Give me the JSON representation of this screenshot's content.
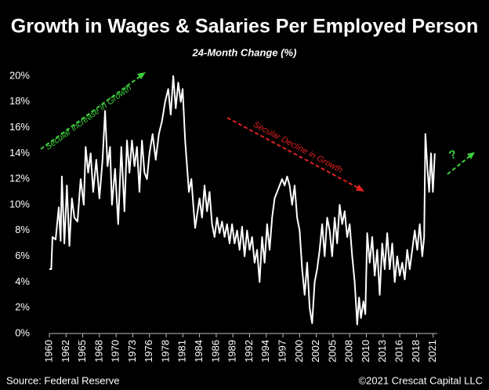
{
  "chart_data": {
    "type": "line",
    "title": "Growth in Wages & Salaries Per Employed Person",
    "subtitle": "24-Month Change (%)",
    "annotations": [
      "Secular Increase in Growth",
      "Secular Decline in Growth",
      "?"
    ],
    "source": "Source: Federal Reserve",
    "credit": "©2021 Crescat Capital LLC",
    "color": "#ffffff",
    "x": [
      1960.0,
      1960.3,
      1960.5,
      1961.0,
      1961.5,
      1961.8,
      1962.0,
      1962.4,
      1962.8,
      1963.2,
      1963.6,
      1964.0,
      1964.5,
      1965.0,
      1965.5,
      1965.8,
      1966.2,
      1966.6,
      1967.0,
      1967.5,
      1968.0,
      1968.5,
      1968.9,
      1969.3,
      1969.7,
      1970.0,
      1970.5,
      1971.0,
      1971.5,
      1972.0,
      1972.4,
      1972.8,
      1973.2,
      1973.6,
      1974.0,
      1974.4,
      1974.8,
      1975.2,
      1975.6,
      1976.0,
      1976.5,
      1977.0,
      1977.5,
      1978.0,
      1978.5,
      1979.0,
      1979.4,
      1979.8,
      1980.2,
      1980.6,
      1981.0,
      1981.3,
      1981.7,
      1982.0,
      1982.3,
      1982.7,
      1983.0,
      1983.3,
      1983.7,
      1984.0,
      1984.4,
      1984.8,
      1985.2,
      1985.6,
      1986.0,
      1986.4,
      1986.8,
      1987.2,
      1987.6,
      1988.0,
      1988.4,
      1988.8,
      1989.2,
      1989.6,
      1990.0,
      1990.4,
      1990.8,
      1991.2,
      1991.6,
      1992.0,
      1992.4,
      1992.8,
      1993.2,
      1993.6,
      1994.0,
      1994.4,
      1994.8,
      1995.2,
      1995.6,
      1996.0,
      1996.4,
      1996.8,
      1997.2,
      1997.6,
      1998.0,
      1998.4,
      1998.8,
      1999.2,
      1999.6,
      2000.0,
      2000.4,
      2000.8,
      2001.2,
      2001.6,
      2002.0,
      2002.4,
      2002.8,
      2003.2,
      2003.6,
      2004.0,
      2004.4,
      2004.8,
      2005.2,
      2005.6,
      2006.0,
      2006.4,
      2006.8,
      2007.2,
      2007.6,
      2008.0,
      2008.4,
      2008.8,
      2009.2,
      2009.5,
      2009.8,
      2010.2,
      2010.5,
      2010.8,
      2011.2,
      2011.6,
      2012.0,
      2012.4,
      2012.8,
      2013.2,
      2013.6,
      2014.0,
      2014.4,
      2014.8,
      2015.2,
      2015.6,
      2016.0,
      2016.4,
      2016.8,
      2017.2,
      2017.6,
      2018.0,
      2018.4,
      2018.8,
      2019.2,
      2019.6,
      2019.9,
      2020.1,
      2020.4,
      2020.7,
      2021.0,
      2021.3,
      2021.6
    ],
    "values": [
      5.0,
      5.0,
      7.5,
      7.3,
      9.8,
      7.2,
      12.2,
      7.0,
      11.5,
      6.8,
      10.5,
      9.0,
      8.7,
      12.0,
      10.0,
      14.5,
      12.5,
      14.0,
      11.0,
      13.5,
      10.5,
      13.5,
      17.3,
      13.0,
      14.5,
      10.0,
      12.8,
      8.5,
      14.5,
      9.5,
      15.0,
      12.5,
      15.0,
      13.0,
      14.5,
      11.0,
      15.0,
      12.5,
      12.0,
      14.0,
      15.5,
      13.5,
      15.5,
      16.5,
      18.0,
      19.0,
      17.0,
      20.0,
      17.5,
      19.5,
      18.0,
      19.0,
      15.0,
      13.0,
      11.0,
      12.0,
      10.0,
      8.2,
      9.5,
      10.5,
      9.0,
      11.5,
      9.5,
      11.0,
      8.5,
      7.5,
      9.0,
      7.8,
      8.7,
      7.5,
      8.5,
      7.0,
      8.5,
      7.0,
      8.0,
      6.5,
      8.3,
      6.0,
      8.0,
      6.5,
      7.5,
      5.5,
      6.5,
      4.0,
      7.5,
      5.5,
      8.5,
      6.5,
      9.0,
      10.5,
      11.0,
      11.5,
      12.0,
      11.5,
      12.2,
      11.5,
      10.0,
      11.5,
      9.0,
      8.0,
      5.0,
      3.0,
      5.5,
      2.0,
      0.8,
      4.0,
      5.0,
      6.5,
      8.5,
      6.0,
      9.0,
      8.0,
      6.0,
      9.0,
      7.0,
      10.0,
      8.5,
      9.5,
      7.5,
      8.5,
      6.0,
      4.0,
      0.7,
      2.8,
      1.2,
      2.5,
      1.5,
      7.8,
      5.5,
      7.5,
      4.5,
      6.5,
      3.0,
      7.0,
      5.0,
      7.8,
      5.0,
      7.0,
      4.0,
      6.0,
      4.5,
      5.5,
      4.2,
      6.5,
      5.0,
      6.5,
      8.0,
      6.5,
      8.5,
      6.0,
      7.5,
      15.5,
      13.0,
      11.0,
      14.0,
      11.0,
      14.0
    ],
    "xlim": [
      1960,
      2022
    ],
    "xticks": [
      1960,
      {
        "value": 1962.67,
        "label": "1962"
      },
      {
        "value": 1965.33,
        "label": "1965"
      },
      1968,
      {
        "value": 1970.67,
        "label": "1970"
      },
      {
        "value": 1973.33,
        "label": "1973"
      },
      1976,
      {
        "value": 1978.67,
        "label": "1978"
      },
      {
        "value": 1981.33,
        "label": "1981"
      },
      1984,
      {
        "value": 1986.67,
        "label": "1986"
      },
      {
        "value": 1989.33,
        "label": "1989"
      },
      1992,
      {
        "value": 1994.67,
        "label": "1994"
      },
      {
        "value": 1997.33,
        "label": "1997"
      },
      2000,
      {
        "value": 2002.67,
        "label": "2002"
      },
      {
        "value": 2005.33,
        "label": "2005"
      },
      2008,
      {
        "value": 2010.67,
        "label": "2010"
      },
      {
        "value": 2013.33,
        "label": "2013"
      },
      2016,
      {
        "value": 2018.67,
        "label": "2018"
      },
      {
        "value": 2021.33,
        "label": "2021"
      }
    ],
    "ylim": [
      0,
      20
    ],
    "yticks": [
      {
        "value": 0,
        "label": "0%"
      },
      {
        "value": 2,
        "label": "2%"
      },
      {
        "value": 4,
        "label": "4%"
      },
      {
        "value": 6,
        "label": "6%"
      },
      {
        "value": 8,
        "label": "8%"
      },
      {
        "value": 10,
        "label": "10%"
      },
      {
        "value": 12,
        "label": "12%"
      },
      {
        "value": 14,
        "label": "14%"
      },
      {
        "value": 16,
        "label": "16%"
      },
      {
        "value": 18,
        "label": "18%"
      },
      {
        "value": 20,
        "label": "20%"
      }
    ],
    "grid": false
  }
}
